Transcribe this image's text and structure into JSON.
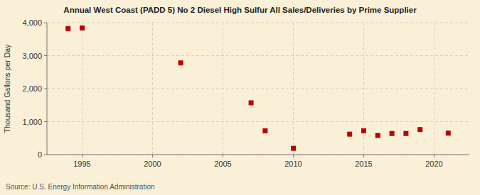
{
  "chart_data": {
    "type": "scatter",
    "title": "Annual West Coast (PADD 5) No 2 Diesel High Sulfur All Sales/Deliveries by Prime Supplier",
    "ylabel": "Thousand Gallons per Day",
    "annotations": [
      "Source: U.S. Energy Information Administration"
    ],
    "x": [
      1994,
      1995,
      2002,
      2007,
      2008,
      2010,
      2014,
      2015,
      2016,
      2017,
      2018,
      2019,
      2021
    ],
    "values": [
      3820,
      3840,
      2780,
      1570,
      720,
      190,
      620,
      720,
      580,
      640,
      640,
      760,
      650
    ],
    "color": "#c00000",
    "marker": "square",
    "xlim": [
      1992.5,
      2022.5
    ],
    "ylim": [
      0,
      4000
    ],
    "xticks": [
      1995,
      2000,
      2005,
      2010,
      2015,
      2020
    ],
    "yticks": [
      0,
      {
        "value": 1000,
        "label": "1,000"
      },
      {
        "value": 2000,
        "label": "2,000"
      },
      {
        "value": 3000,
        "label": "3,000"
      },
      {
        "value": 4000,
        "label": "4,000"
      }
    ],
    "grid": true
  }
}
